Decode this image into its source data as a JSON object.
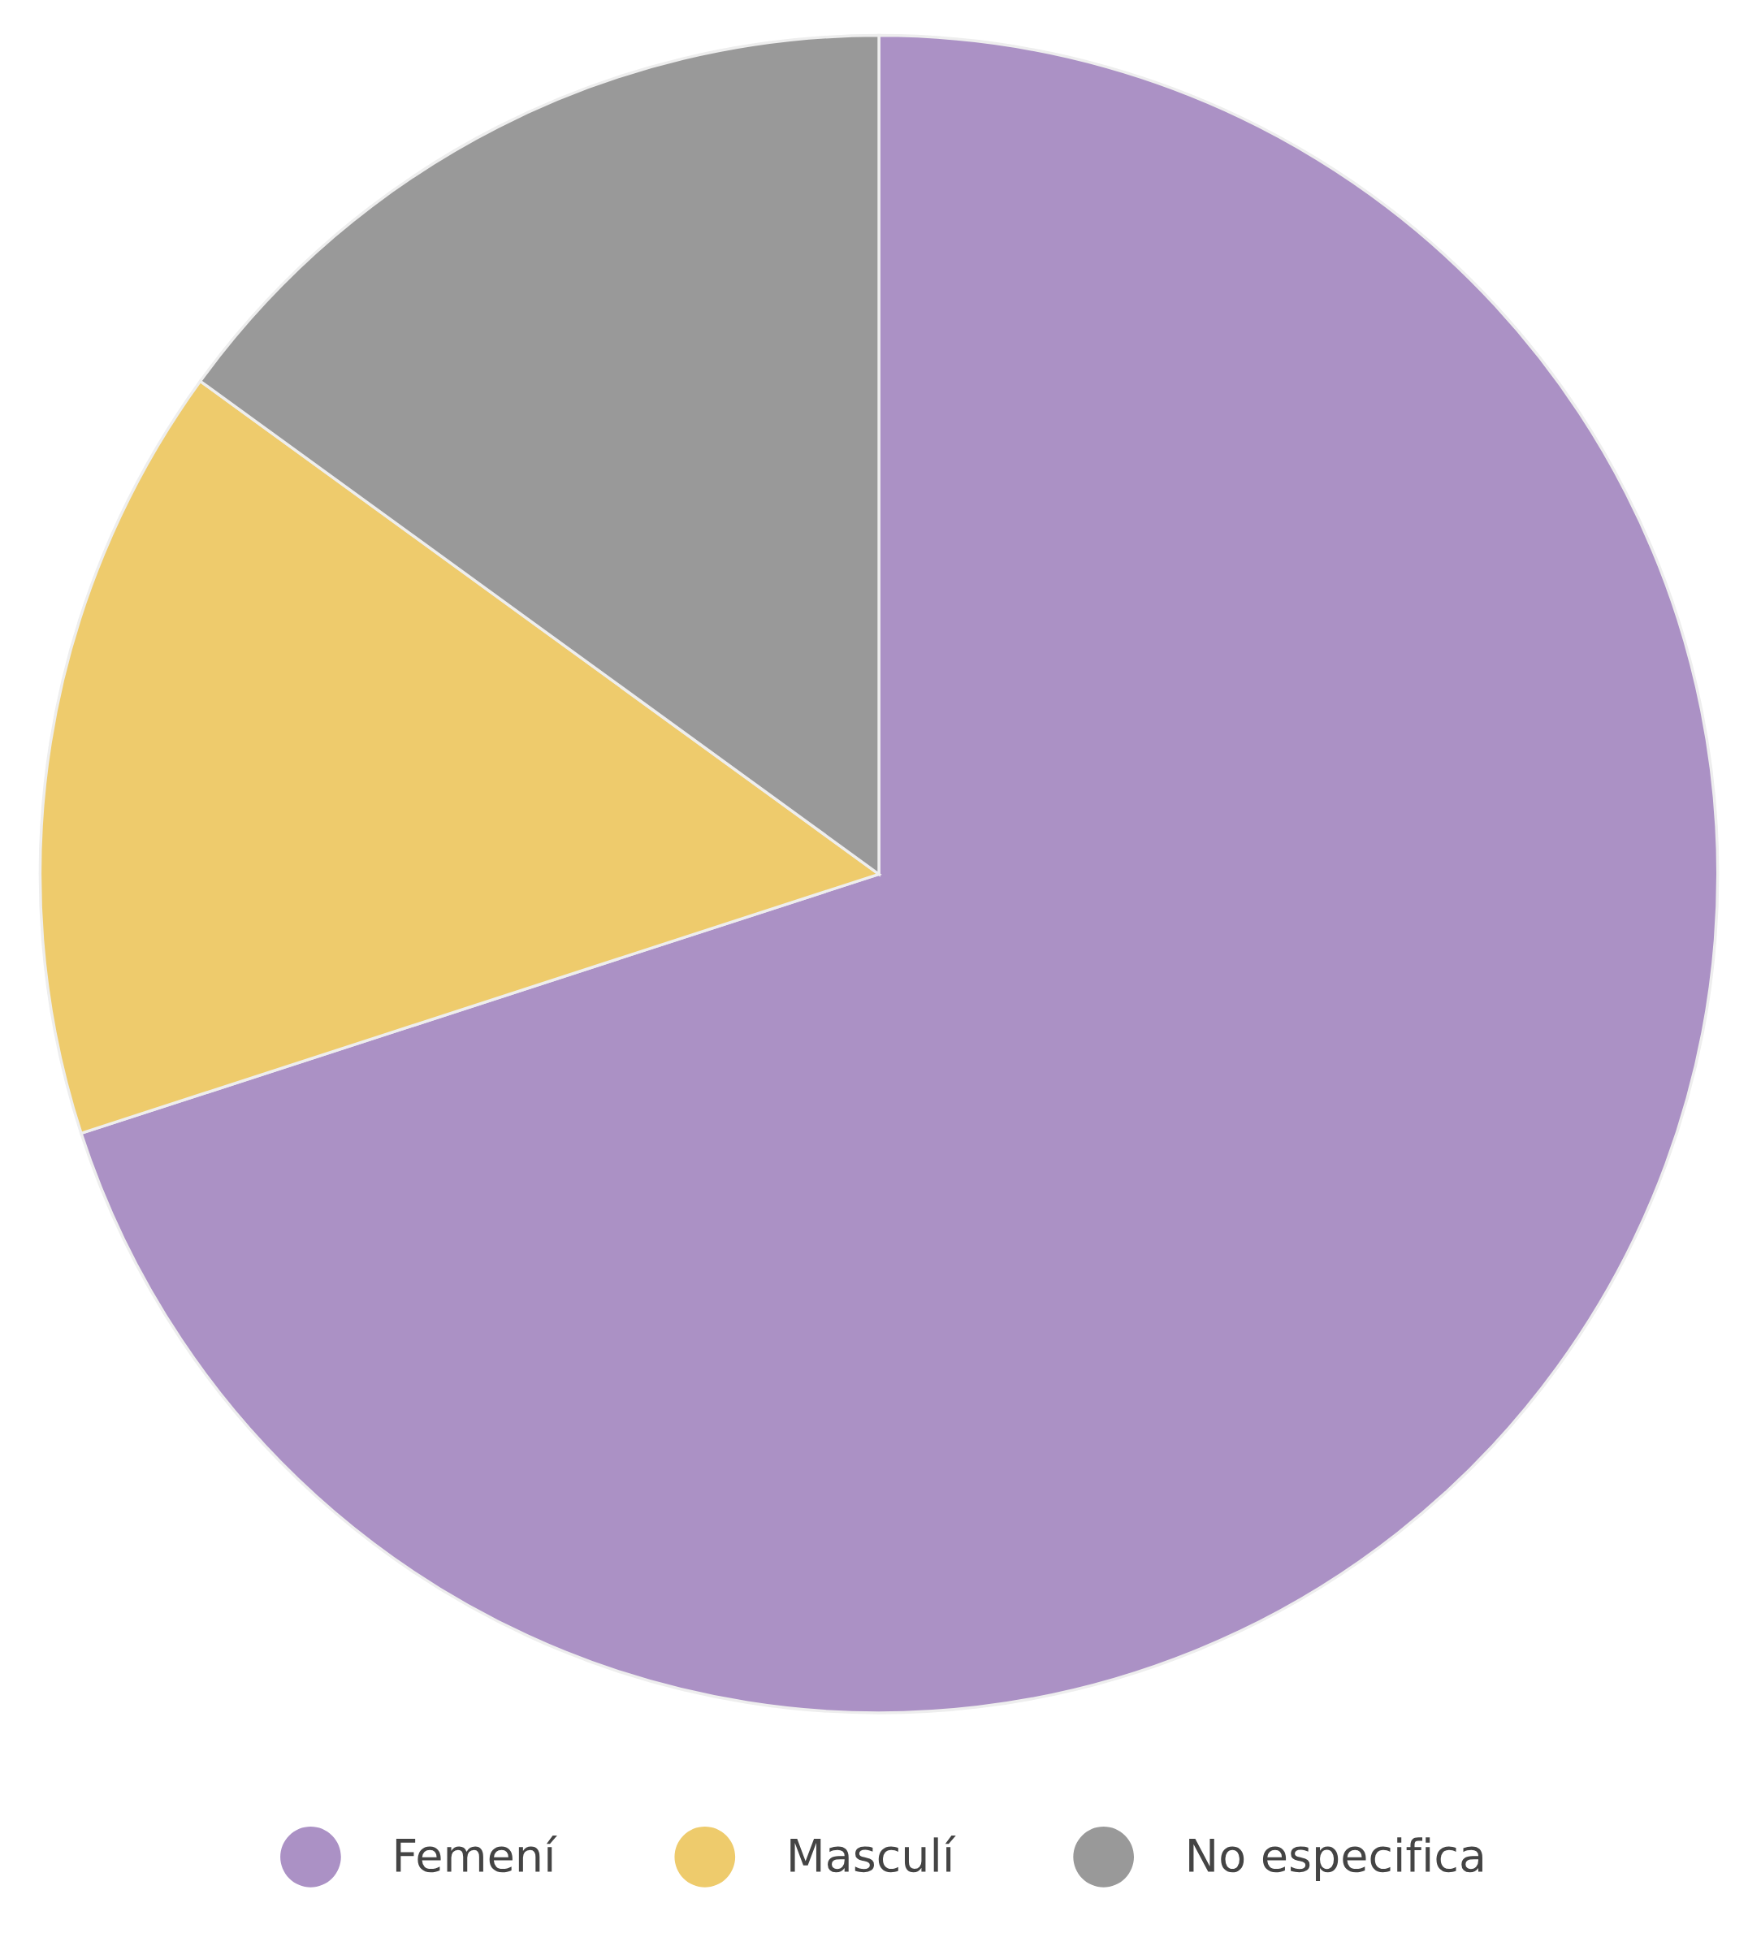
{
  "chart_data": {
    "type": "pie",
    "categories": [
      "Femení",
      "Masculí",
      "No especifica"
    ],
    "values": [
      70,
      15,
      15
    ],
    "colors": [
      "#ab91c5",
      "#eecb6c",
      "#999999"
    ],
    "legend": "bottom"
  }
}
